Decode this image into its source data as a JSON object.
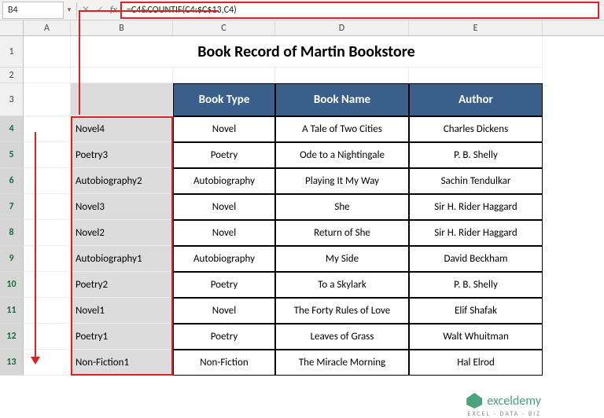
{
  "formula_bar": {
    "cell_ref": "B4",
    "formula": "=C4&COUNTIF(C4:$C$13,C4)"
  },
  "columns": [
    "A",
    "B",
    "C",
    "D",
    "E"
  ],
  "row_numbers": [
    1,
    2,
    3,
    4,
    5,
    6,
    7,
    8,
    9,
    10,
    11,
    12,
    13
  ],
  "title": "Book Record of Martin Bookstore",
  "headers": {
    "book_type": "Book Type",
    "book_name": "Book Name",
    "author": "Author"
  },
  "rows": [
    {
      "b": "Novel4",
      "c": "Novel",
      "d": "A Tale of Two Cities",
      "e": "Charles Dickens"
    },
    {
      "b": "Poetry3",
      "c": "Poetry",
      "d": "Ode to a Nightingale",
      "e": "P. B. Shelly"
    },
    {
      "b": "Autobiography2",
      "c": "Autobiography",
      "d": "Playing It My Way",
      "e": "Sachin Tendulkar"
    },
    {
      "b": "Novel3",
      "c": "Novel",
      "d": "She",
      "e": "Sir H. Rider Haggard"
    },
    {
      "b": "Novel2",
      "c": "Novel",
      "d": "Return of She",
      "e": "Sir H. Rider Haggard"
    },
    {
      "b": "Autobiography1",
      "c": "Autobiography",
      "d": "My Side",
      "e": "David Beckham"
    },
    {
      "b": "Poetry2",
      "c": "Poetry",
      "d": "To a Skylark",
      "e": "P. B. Shelly"
    },
    {
      "b": "Novel1",
      "c": "Novel",
      "d": "The Forty Rules of Love",
      "e": "Elif Shafak"
    },
    {
      "b": "Poetry1",
      "c": "Poetry",
      "d": "Leaves of Grass",
      "e": "Walt Whuitman"
    },
    {
      "b": "Non-Fiction1",
      "c": "Non-Fiction",
      "d": "The Miracle Morning",
      "e": "Hal Elrod"
    }
  ],
  "logo": {
    "text": "exceldemy",
    "subtitle": "EXCEL · DATA · BIZ"
  },
  "colors": {
    "highlight": "#e02020",
    "header_bg": "#3a5f8a",
    "sel_bg": "#dcdcdc",
    "brand": "#4aa37a"
  }
}
